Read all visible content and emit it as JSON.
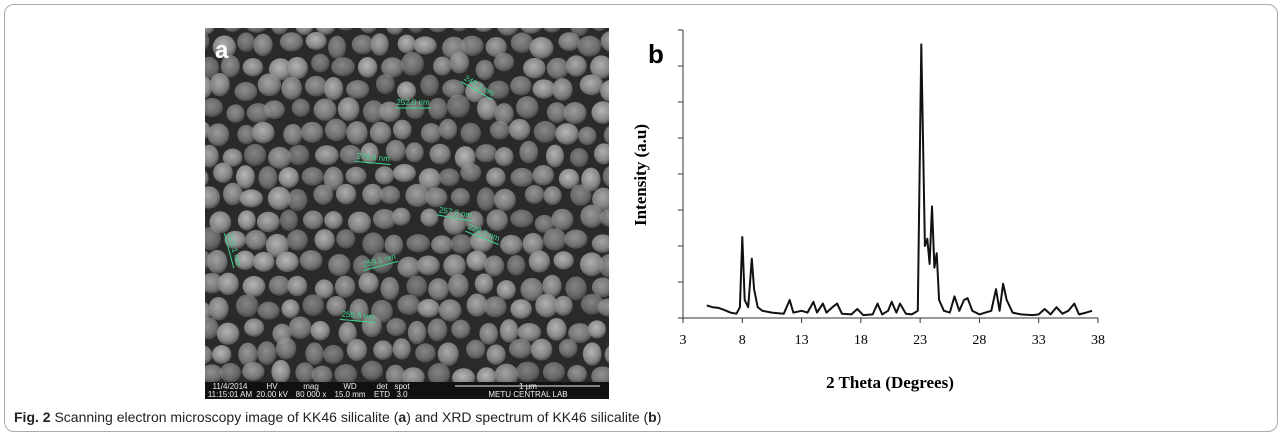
{
  "sem": {
    "panel_label": "a",
    "measurements": [
      "249.3 nm",
      "252.0 nm",
      "276.6 nm",
      "257.2 nm",
      "228.2 nm",
      "222.1 nm",
      "259.1 nm",
      "255.6 nm"
    ],
    "info_bar": {
      "rows": [
        [
          "11/4/2014",
          "HV",
          "mag",
          "WD",
          "det",
          "spot"
        ],
        [
          "11:15:01 AM",
          "20.00 kV",
          "80 000 x",
          "15.0 mm",
          "ETD",
          "3.0"
        ]
      ],
      "scale_bar": "1 μm",
      "lab": "METU CENTRAL LAB"
    }
  },
  "chart_data": {
    "type": "line",
    "panel_label": "b",
    "x_label": "2 Theta  (Degrees)",
    "y_label": "Intensity  (a.u)",
    "xlim": [
      3,
      38
    ],
    "xticks": [
      3,
      8,
      13,
      18,
      23,
      28,
      33,
      38
    ],
    "ylim": [
      0,
      8
    ],
    "yticks": [
      0,
      1,
      2,
      3,
      4,
      5,
      6,
      7,
      8
    ],
    "series": [
      {
        "name": "KK46 silicalite",
        "color": "#111111",
        "x": [
          5,
          5.5,
          6,
          6.5,
          7,
          7.5,
          7.8,
          8.0,
          8.2,
          8.5,
          8.8,
          9.0,
          9.3,
          9.7,
          10.5,
          11.5,
          12.0,
          12.3,
          13.0,
          13.5,
          14.0,
          14.3,
          14.8,
          15.1,
          15.6,
          16.0,
          16.4,
          17.2,
          17.7,
          18.2,
          19.0,
          19.4,
          19.8,
          20.3,
          20.6,
          21.0,
          21.3,
          21.8,
          22.3,
          22.8,
          23.1,
          23.4,
          23.6,
          23.8,
          24.0,
          24.2,
          24.4,
          24.6,
          25.0,
          25.5,
          25.9,
          26.3,
          26.7,
          27.0,
          27.4,
          28.0,
          28.5,
          29.0,
          29.4,
          29.7,
          30.0,
          30.3,
          30.8,
          31.5,
          32.5,
          33.0,
          33.5,
          34.0,
          34.5,
          35.0,
          35.5,
          36.0,
          36.4,
          37.0,
          37.5
        ],
        "values": [
          0.35,
          0.3,
          0.28,
          0.22,
          0.15,
          0.12,
          0.3,
          2.25,
          0.5,
          0.3,
          1.65,
          0.8,
          0.3,
          0.2,
          0.15,
          0.12,
          0.5,
          0.15,
          0.2,
          0.15,
          0.45,
          0.15,
          0.4,
          0.15,
          0.3,
          0.4,
          0.12,
          0.1,
          0.25,
          0.08,
          0.1,
          0.4,
          0.1,
          0.2,
          0.45,
          0.15,
          0.4,
          0.12,
          0.1,
          0.2,
          7.6,
          2.0,
          2.2,
          1.5,
          3.1,
          1.4,
          1.8,
          0.5,
          0.2,
          0.15,
          0.6,
          0.2,
          0.5,
          0.55,
          0.2,
          0.1,
          0.15,
          0.2,
          0.8,
          0.2,
          0.95,
          0.5,
          0.15,
          0.1,
          0.08,
          0.1,
          0.25,
          0.1,
          0.3,
          0.12,
          0.2,
          0.4,
          0.1,
          0.15,
          0.2
        ]
      }
    ]
  },
  "caption": {
    "label": "Fig. 2",
    "segments": [
      "Scanning electron microscopy image of KK46 silicalite (",
      "a",
      ") and XRD spectrum of KK46 silicalite (",
      "b",
      ")"
    ]
  }
}
